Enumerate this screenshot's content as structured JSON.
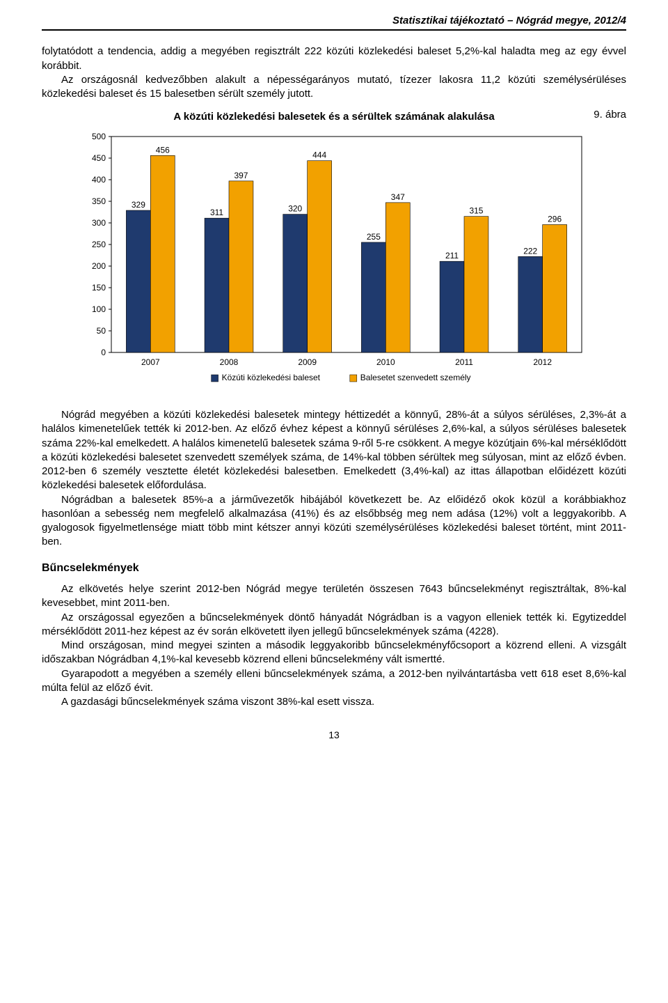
{
  "header": {
    "title": "Statisztikai tájékoztató – Nógrád megye, 2012/4"
  },
  "para1": "folytatódott a tendencia, addig a megyében regisztrált 222 közúti közlekedési baleset 5,2%-kal haladta meg az egy évvel korábbit.",
  "para2": "Az országosnál kedvezőbben alakult a népességarányos mutató, tízezer lakosra 11,2 közúti személysérüléses közlekedési baleset és 15 balesetben sérült személy jutott.",
  "figure": {
    "label": "9. ábra",
    "title": "A közúti közlekedési balesetek és a sérültek számának alakulása"
  },
  "chart": {
    "type": "bar",
    "categories": [
      "2007",
      "2008",
      "2009",
      "2010",
      "2011",
      "2012"
    ],
    "series": [
      {
        "name": "Közúti közlekedési baleset",
        "color": "#1f3a6e",
        "values": [
          329,
          311,
          320,
          255,
          211,
          222
        ]
      },
      {
        "name": "Balesetet szenvedett személy",
        "color": "#f2a100",
        "values": [
          456,
          397,
          444,
          347,
          315,
          296
        ]
      }
    ],
    "ylim": [
      0,
      500
    ],
    "ytick_step": 50,
    "background_color": "#ffffff",
    "plot_border_color": "#000000",
    "grid_color": "#000000",
    "bar_group_width": 0.62,
    "value_label_fontsize": 12,
    "axis_label_fontsize": 12,
    "legend_fontsize": 12,
    "legend_box_size": 10
  },
  "para3": "Nógrád megyében a közúti közlekedési balesetek mintegy héttizedét a könnyű, 28%-át a súlyos sérüléses, 2,3%-át a halálos kimenetelűek tették ki 2012-ben. Az előző évhez képest a könnyű sérüléses 2,6%-kal, a súlyos sérüléses balesetek száma 22%-kal emelkedett. A halálos kimenetelű balesetek száma 9-ről 5-re csökkent. A megye közútjain 6%-kal mérséklődött a közúti közlekedési balesetet szenvedett személyek száma, de 14%-kal többen sérültek meg súlyosan, mint az előző évben. 2012-ben 6 személy vesztette életét közlekedési balesetben. Emelkedett (3,4%-kal) az ittas állapotban előidézett közúti közlekedési balesetek előfordulása.",
  "para4": "Nógrádban a balesetek 85%-a a járművezetők hibájából következett be. Az előidéző okok közül a korábbiakhoz hasonlóan a sebesség nem megfelelő alkalmazása (41%) és az elsőbbség meg nem adása (12%) volt a leggyakoribb. A gyalogosok figyelmetlensége miatt több mint kétszer annyi közúti személysérüléses közlekedési baleset történt, mint 2011-ben.",
  "section2": {
    "heading": "Bűncselekmények",
    "p1": "Az elkövetés helye szerint 2012-ben Nógrád megye területén összesen 7643 bűncselekményt regisztráltak, 8%-kal kevesebbet, mint 2011-ben.",
    "p2": "Az országossal egyezően a bűncselekmények döntő hányadát Nógrádban is a vagyon elleniek tették ki. Egytizeddel mérséklődött 2011-hez képest az év során elkövetett ilyen jellegű bűncselekmények száma (4228).",
    "p3": "Mind országosan, mind megyei szinten a második leggyakoribb bűncselekményfőcsoport a közrend elleni. A vizsgált időszakban Nógrádban 4,1%-kal kevesebb közrend elleni bűncselekmény vált ismertté.",
    "p4": "Gyarapodott a megyében a személy elleni bűncselekmények száma, a 2012-ben nyilvántartásba vett 618 eset 8,6%-kal múlta felül az előző évit.",
    "p5": "A gazdasági bűncselekmények száma viszont 38%-kal esett vissza."
  },
  "page_number": "13"
}
